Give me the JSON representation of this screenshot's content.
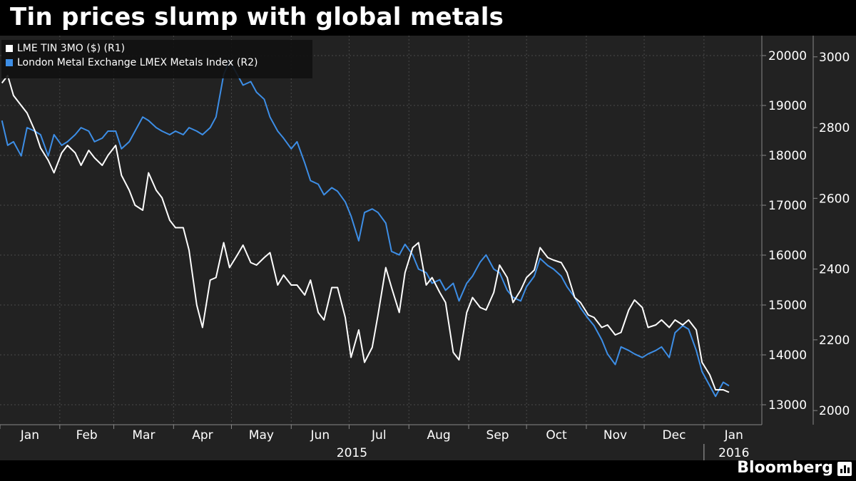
{
  "title": "Tin prices slump with global metals",
  "brand": "Bloomberg",
  "chart_data": {
    "type": "line",
    "title": "Tin prices slump with global metals",
    "grid": true,
    "legend_position": "top-left",
    "x_start": "2015-01-01",
    "x_end": "2016-01-31",
    "months": [
      "Jan",
      "Feb",
      "Mar",
      "Apr",
      "May",
      "Jun",
      "Jul",
      "Aug",
      "Sep",
      "Oct",
      "Nov",
      "Dec",
      "Jan"
    ],
    "year_labels": [
      "2015",
      "2016"
    ],
    "y_right1": {
      "label": "R1",
      "range": [
        12600,
        20400
      ],
      "ticks": [
        13000,
        14000,
        15000,
        16000,
        17000,
        18000,
        19000,
        20000
      ]
    },
    "y_right2": {
      "label": "R2",
      "range": [
        1960,
        3060
      ],
      "ticks": [
        2000,
        2200,
        2400,
        2600,
        2800,
        3000
      ]
    },
    "series": [
      {
        "name": "LME TIN 3MO ($)  (R1)",
        "axis": "R1",
        "color": "#ffffff",
        "points": [
          [
            "2015-01-02",
            19450
          ],
          [
            "2015-01-05",
            19600
          ],
          [
            "2015-01-08",
            19200
          ],
          [
            "2015-01-12",
            19000
          ],
          [
            "2015-01-15",
            18850
          ],
          [
            "2015-01-19",
            18500
          ],
          [
            "2015-01-22",
            18150
          ],
          [
            "2015-01-26",
            17900
          ],
          [
            "2015-01-29",
            17650
          ],
          [
            "2015-02-02",
            18050
          ],
          [
            "2015-02-05",
            18200
          ],
          [
            "2015-02-09",
            18050
          ],
          [
            "2015-02-12",
            17800
          ],
          [
            "2015-02-16",
            18100
          ],
          [
            "2015-02-19",
            17950
          ],
          [
            "2015-02-23",
            17800
          ],
          [
            "2015-02-26",
            18000
          ],
          [
            "2015-03-02",
            18200
          ],
          [
            "2015-03-05",
            17600
          ],
          [
            "2015-03-09",
            17300
          ],
          [
            "2015-03-12",
            17000
          ],
          [
            "2015-03-16",
            16900
          ],
          [
            "2015-03-19",
            17650
          ],
          [
            "2015-03-23",
            17300
          ],
          [
            "2015-03-26",
            17150
          ],
          [
            "2015-03-30",
            16700
          ],
          [
            "2015-04-02",
            16550
          ],
          [
            "2015-04-06",
            16550
          ],
          [
            "2015-04-09",
            16100
          ],
          [
            "2015-04-13",
            15000
          ],
          [
            "2015-04-16",
            14550
          ],
          [
            "2015-04-20",
            15500
          ],
          [
            "2015-04-23",
            15550
          ],
          [
            "2015-04-27",
            16250
          ],
          [
            "2015-04-30",
            15750
          ],
          [
            "2015-05-04",
            16000
          ],
          [
            "2015-05-07",
            16200
          ],
          [
            "2015-05-11",
            15850
          ],
          [
            "2015-05-14",
            15800
          ],
          [
            "2015-05-18",
            15950
          ],
          [
            "2015-05-21",
            16050
          ],
          [
            "2015-05-25",
            15400
          ],
          [
            "2015-05-28",
            15600
          ],
          [
            "2015-06-01",
            15400
          ],
          [
            "2015-06-04",
            15400
          ],
          [
            "2015-06-08",
            15200
          ],
          [
            "2015-06-11",
            15500
          ],
          [
            "2015-06-15",
            14850
          ],
          [
            "2015-06-18",
            14700
          ],
          [
            "2015-06-22",
            15350
          ],
          [
            "2015-06-25",
            15350
          ],
          [
            "2015-06-29",
            14750
          ],
          [
            "2015-07-02",
            13950
          ],
          [
            "2015-07-06",
            14500
          ],
          [
            "2015-07-09",
            13850
          ],
          [
            "2015-07-13",
            14150
          ],
          [
            "2015-07-16",
            14800
          ],
          [
            "2015-07-20",
            15750
          ],
          [
            "2015-07-23",
            15350
          ],
          [
            "2015-07-27",
            14850
          ],
          [
            "2015-07-30",
            15650
          ],
          [
            "2015-08-03",
            16150
          ],
          [
            "2015-08-06",
            16250
          ],
          [
            "2015-08-10",
            15400
          ],
          [
            "2015-08-13",
            15550
          ],
          [
            "2015-08-17",
            15250
          ],
          [
            "2015-08-20",
            15050
          ],
          [
            "2015-08-24",
            14050
          ],
          [
            "2015-08-27",
            13900
          ],
          [
            "2015-08-31",
            14850
          ],
          [
            "2015-09-03",
            15150
          ],
          [
            "2015-09-07",
            14950
          ],
          [
            "2015-09-10",
            14900
          ],
          [
            "2015-09-14",
            15250
          ],
          [
            "2015-09-17",
            15800
          ],
          [
            "2015-09-21",
            15550
          ],
          [
            "2015-09-24",
            15050
          ],
          [
            "2015-09-28",
            15300
          ],
          [
            "2015-10-01",
            15550
          ],
          [
            "2015-10-05",
            15700
          ],
          [
            "2015-10-08",
            16150
          ],
          [
            "2015-10-12",
            15950
          ],
          [
            "2015-10-15",
            15900
          ],
          [
            "2015-10-19",
            15850
          ],
          [
            "2015-10-22",
            15650
          ],
          [
            "2015-10-26",
            15150
          ],
          [
            "2015-10-29",
            15050
          ],
          [
            "2015-11-02",
            14800
          ],
          [
            "2015-11-05",
            14750
          ],
          [
            "2015-11-09",
            14550
          ],
          [
            "2015-11-12",
            14600
          ],
          [
            "2015-11-16",
            14400
          ],
          [
            "2015-11-19",
            14450
          ],
          [
            "2015-11-23",
            14900
          ],
          [
            "2015-11-26",
            15100
          ],
          [
            "2015-11-30",
            14950
          ],
          [
            "2015-12-03",
            14550
          ],
          [
            "2015-12-07",
            14600
          ],
          [
            "2015-12-10",
            14700
          ],
          [
            "2015-12-14",
            14550
          ],
          [
            "2015-12-17",
            14700
          ],
          [
            "2015-12-21",
            14600
          ],
          [
            "2015-12-24",
            14700
          ],
          [
            "2015-12-28",
            14500
          ],
          [
            "2015-12-31",
            13850
          ],
          [
            "2016-01-04",
            13600
          ],
          [
            "2016-01-07",
            13300
          ],
          [
            "2016-01-11",
            13300
          ],
          [
            "2016-01-14",
            13250
          ]
        ]
      },
      {
        "name": "London Metal Exchange LMEX Metals Index  (R2)",
        "axis": "R2",
        "color": "#3d8ee6",
        "points": [
          [
            "2015-01-02",
            2820
          ],
          [
            "2015-01-05",
            2750
          ],
          [
            "2015-01-08",
            2760
          ],
          [
            "2015-01-12",
            2720
          ],
          [
            "2015-01-15",
            2800
          ],
          [
            "2015-01-19",
            2790
          ],
          [
            "2015-01-22",
            2780
          ],
          [
            "2015-01-26",
            2720
          ],
          [
            "2015-01-29",
            2780
          ],
          [
            "2015-02-02",
            2750
          ],
          [
            "2015-02-05",
            2760
          ],
          [
            "2015-02-09",
            2780
          ],
          [
            "2015-02-12",
            2800
          ],
          [
            "2015-02-16",
            2790
          ],
          [
            "2015-02-19",
            2760
          ],
          [
            "2015-02-23",
            2770
          ],
          [
            "2015-02-26",
            2790
          ],
          [
            "2015-03-02",
            2790
          ],
          [
            "2015-03-05",
            2740
          ],
          [
            "2015-03-09",
            2760
          ],
          [
            "2015-03-12",
            2790
          ],
          [
            "2015-03-16",
            2830
          ],
          [
            "2015-03-19",
            2820
          ],
          [
            "2015-03-23",
            2800
          ],
          [
            "2015-03-26",
            2790
          ],
          [
            "2015-03-30",
            2780
          ],
          [
            "2015-04-02",
            2790
          ],
          [
            "2015-04-06",
            2780
          ],
          [
            "2015-04-09",
            2800
          ],
          [
            "2015-04-13",
            2790
          ],
          [
            "2015-04-16",
            2780
          ],
          [
            "2015-04-20",
            2800
          ],
          [
            "2015-04-23",
            2830
          ],
          [
            "2015-04-27",
            2950
          ],
          [
            "2015-04-30",
            2990
          ],
          [
            "2015-05-04",
            2950
          ],
          [
            "2015-05-07",
            2920
          ],
          [
            "2015-05-11",
            2930
          ],
          [
            "2015-05-14",
            2900
          ],
          [
            "2015-05-18",
            2880
          ],
          [
            "2015-05-21",
            2830
          ],
          [
            "2015-05-25",
            2790
          ],
          [
            "2015-05-28",
            2770
          ],
          [
            "2015-06-01",
            2740
          ],
          [
            "2015-06-04",
            2760
          ],
          [
            "2015-06-08",
            2700
          ],
          [
            "2015-06-11",
            2650
          ],
          [
            "2015-06-15",
            2640
          ],
          [
            "2015-06-18",
            2610
          ],
          [
            "2015-06-22",
            2630
          ],
          [
            "2015-06-25",
            2620
          ],
          [
            "2015-06-29",
            2590
          ],
          [
            "2015-07-02",
            2550
          ],
          [
            "2015-07-06",
            2480
          ],
          [
            "2015-07-09",
            2560
          ],
          [
            "2015-07-13",
            2570
          ],
          [
            "2015-07-16",
            2560
          ],
          [
            "2015-07-20",
            2530
          ],
          [
            "2015-07-23",
            2450
          ],
          [
            "2015-07-27",
            2440
          ],
          [
            "2015-07-30",
            2470
          ],
          [
            "2015-08-03",
            2440
          ],
          [
            "2015-08-06",
            2400
          ],
          [
            "2015-08-10",
            2390
          ],
          [
            "2015-08-13",
            2360
          ],
          [
            "2015-08-17",
            2370
          ],
          [
            "2015-08-20",
            2340
          ],
          [
            "2015-08-24",
            2360
          ],
          [
            "2015-08-27",
            2310
          ],
          [
            "2015-08-31",
            2360
          ],
          [
            "2015-09-03",
            2380
          ],
          [
            "2015-09-07",
            2420
          ],
          [
            "2015-09-10",
            2440
          ],
          [
            "2015-09-14",
            2400
          ],
          [
            "2015-09-17",
            2390
          ],
          [
            "2015-09-21",
            2340
          ],
          [
            "2015-09-24",
            2320
          ],
          [
            "2015-09-28",
            2310
          ],
          [
            "2015-10-01",
            2350
          ],
          [
            "2015-10-05",
            2380
          ],
          [
            "2015-10-08",
            2430
          ],
          [
            "2015-10-12",
            2410
          ],
          [
            "2015-10-15",
            2400
          ],
          [
            "2015-10-19",
            2380
          ],
          [
            "2015-10-22",
            2350
          ],
          [
            "2015-10-26",
            2320
          ],
          [
            "2015-10-29",
            2290
          ],
          [
            "2015-11-02",
            2260
          ],
          [
            "2015-11-05",
            2240
          ],
          [
            "2015-11-09",
            2200
          ],
          [
            "2015-11-12",
            2160
          ],
          [
            "2015-11-16",
            2130
          ],
          [
            "2015-11-19",
            2180
          ],
          [
            "2015-11-23",
            2170
          ],
          [
            "2015-11-26",
            2160
          ],
          [
            "2015-11-30",
            2150
          ],
          [
            "2015-12-03",
            2160
          ],
          [
            "2015-12-07",
            2170
          ],
          [
            "2015-12-10",
            2180
          ],
          [
            "2015-12-14",
            2150
          ],
          [
            "2015-12-17",
            2220
          ],
          [
            "2015-12-21",
            2240
          ],
          [
            "2015-12-24",
            2230
          ],
          [
            "2015-12-28",
            2170
          ],
          [
            "2015-12-31",
            2110
          ],
          [
            "2016-01-04",
            2070
          ],
          [
            "2016-01-07",
            2040
          ],
          [
            "2016-01-11",
            2080
          ],
          [
            "2016-01-14",
            2070
          ]
        ]
      }
    ]
  }
}
